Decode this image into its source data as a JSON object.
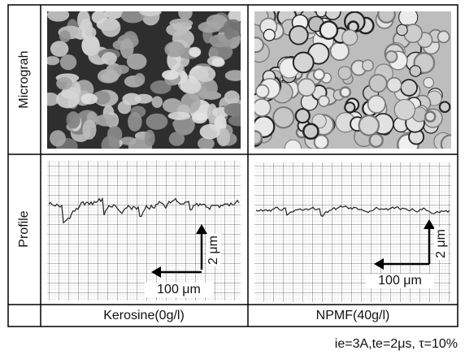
{
  "row_labels": [
    "Micrograh",
    "Profile"
  ],
  "columns": [
    {
      "label": "Kerosine(0g/l)",
      "scale_vertical": "2 μm",
      "scale_horizontal": "100 μm"
    },
    {
      "label": "NPMF(40g/l)",
      "scale_vertical": "2 μm",
      "scale_horizontal": "100 μm"
    }
  ],
  "caption": "ie=3A,te=2μs,  τ=10%"
}
